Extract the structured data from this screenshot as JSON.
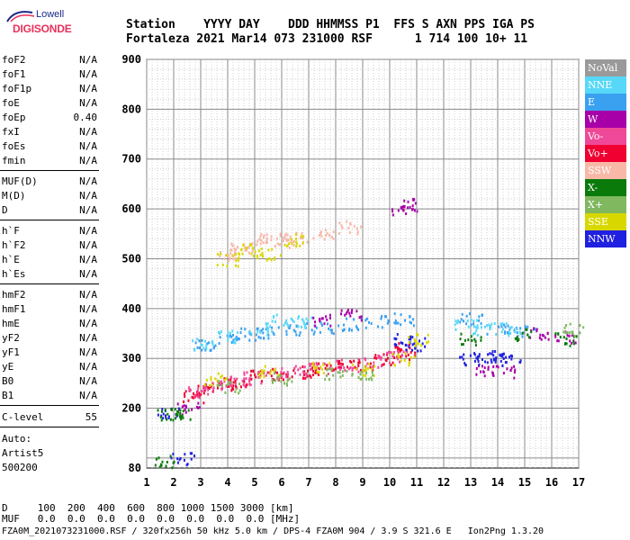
{
  "logo": {
    "top": "Lowell",
    "bottom": "DIGISONDE"
  },
  "header": {
    "line1": "Station    YYYY DAY    DDD HHMMSS P1  FFS S AXN PPS IGA PS",
    "line2": "Fortaleza 2021 Mar14 073 231000 RSF      1 714 100 10+ 11"
  },
  "params_group1": [
    {
      "k": "foF2",
      "v": "N/A"
    },
    {
      "k": "foF1",
      "v": "N/A"
    },
    {
      "k": "foF1p",
      "v": "N/A"
    },
    {
      "k": "foE",
      "v": "N/A"
    },
    {
      "k": "foEp",
      "v": "0.40"
    },
    {
      "k": "fxI",
      "v": "N/A"
    },
    {
      "k": "foEs",
      "v": "N/A"
    },
    {
      "k": "fmin",
      "v": "N/A"
    }
  ],
  "params_group2": [
    {
      "k": "MUF(D)",
      "v": "N/A"
    },
    {
      "k": "M(D)",
      "v": "N/A"
    },
    {
      "k": "D",
      "v": "N/A"
    }
  ],
  "params_group3": [
    {
      "k": "h`F",
      "v": "N/A"
    },
    {
      "k": "h`F2",
      "v": "N/A"
    },
    {
      "k": "h`E",
      "v": "N/A"
    },
    {
      "k": "h`Es",
      "v": "N/A"
    }
  ],
  "params_group4": [
    {
      "k": "hmF2",
      "v": "N/A"
    },
    {
      "k": "hmF1",
      "v": "N/A"
    },
    {
      "k": "hmE",
      "v": "N/A"
    },
    {
      "k": "yF2",
      "v": "N/A"
    },
    {
      "k": "yF1",
      "v": "N/A"
    },
    {
      "k": "yE",
      "v": "N/A"
    },
    {
      "k": "B0",
      "v": "N/A"
    },
    {
      "k": "B1",
      "v": "N/A"
    }
  ],
  "clevel": {
    "k": "C-level",
    "v": "55"
  },
  "auto": [
    "Auto:",
    "Artist5",
    "500200"
  ],
  "legend": [
    {
      "label": "NoVal",
      "color": "#9a9a9a"
    },
    {
      "label": "NNE",
      "color": "#58d8f8"
    },
    {
      "label": "E",
      "color": "#3aa0f0"
    },
    {
      "label": "W",
      "color": "#a800a8"
    },
    {
      "label": "Vo-",
      "color": "#f04898"
    },
    {
      "label": "Vo+",
      "color": "#f00030"
    },
    {
      "label": "SSW",
      "color": "#f8b8a8"
    },
    {
      "label": "X-",
      "color": "#0a7a0a"
    },
    {
      "label": "X+",
      "color": "#80b860"
    },
    {
      "label": "SSE",
      "color": "#d8d800"
    },
    {
      "label": "NNW",
      "color": "#2020e0"
    }
  ],
  "footer": {
    "line1": "D     100  200  400  600  800 1000 1500 3000 [km]",
    "line2": "MUF   0.0  0.0  0.0  0.0  0.0  0.0  0.0  0.0 [MHz]",
    "line3": "FZA0M_2021073231000.RSF / 320fx256h 50 kHz 5.0 km / DPS-4 FZA0M 904 / 3.9 S 321.6 E   Ion2Png 1.3.20"
  },
  "chart_data": {
    "type": "scatter",
    "title": "",
    "xlabel": "",
    "ylabel": "",
    "xlim": [
      1,
      17
    ],
    "ylim": [
      80,
      900
    ],
    "x_ticks": [
      "1",
      "2",
      "3",
      "4",
      "5",
      "6",
      "7",
      "8",
      "9",
      "10",
      "11",
      "12",
      "13",
      "14",
      "15",
      "16",
      "17"
    ],
    "y_ticks": [
      "80",
      "200",
      "300",
      "400",
      "500",
      "600",
      "700",
      "800",
      "900"
    ],
    "grid": true,
    "legend_position": "right",
    "series": [
      {
        "name": "Vo+",
        "color": "#f00030",
        "points": [
          [
            2.7,
            225
          ],
          [
            3.2,
            240
          ],
          [
            3.8,
            250
          ],
          [
            4.5,
            255
          ],
          [
            5.2,
            265
          ],
          [
            6.0,
            270
          ],
          [
            6.8,
            275
          ],
          [
            7.5,
            280
          ],
          [
            8.2,
            285
          ],
          [
            9.0,
            290
          ],
          [
            9.8,
            300
          ],
          [
            10.3,
            310
          ],
          [
            10.6,
            320
          ]
        ]
      },
      {
        "name": "Vo-",
        "color": "#f04898",
        "points": [
          [
            2.9,
            235
          ],
          [
            3.5,
            245
          ],
          [
            4.2,
            255
          ],
          [
            5.0,
            262
          ],
          [
            5.8,
            270
          ],
          [
            6.6,
            278
          ],
          [
            7.4,
            283
          ],
          [
            8.4,
            288
          ],
          [
            9.4,
            295
          ],
          [
            10.2,
            305
          ]
        ]
      },
      {
        "name": "E",
        "color": "#3aa0f0",
        "points": [
          [
            3.2,
            330
          ],
          [
            4.0,
            340
          ],
          [
            4.8,
            350
          ],
          [
            5.5,
            355
          ],
          [
            6.5,
            360
          ],
          [
            7.5,
            362
          ],
          [
            8.5,
            370
          ],
          [
            9.5,
            375
          ],
          [
            10.5,
            380
          ],
          [
            13.0,
            380
          ],
          [
            14.0,
            360
          ],
          [
            15.0,
            355
          ]
        ]
      },
      {
        "name": "NNE",
        "color": "#58d8f8",
        "points": [
          [
            3.0,
            330
          ],
          [
            4.0,
            345
          ],
          [
            5.2,
            360
          ],
          [
            6.0,
            380
          ],
          [
            7.0,
            375
          ],
          [
            12.8,
            370
          ],
          [
            13.5,
            360
          ],
          [
            14.5,
            360
          ]
        ]
      },
      {
        "name": "W",
        "color": "#a800a8",
        "points": [
          [
            2.5,
            200
          ],
          [
            7.5,
            380
          ],
          [
            8.5,
            390
          ],
          [
            10.4,
            600
          ],
          [
            10.8,
            610
          ],
          [
            13.5,
            275
          ],
          [
            14.2,
            275
          ],
          [
            15.5,
            350
          ],
          [
            16.5,
            345
          ]
        ]
      },
      {
        "name": "NNW",
        "color": "#2020e0",
        "points": [
          [
            1.8,
            190
          ],
          [
            2.3,
            100
          ],
          [
            10.5,
            340
          ],
          [
            10.9,
            330
          ],
          [
            13.0,
            300
          ],
          [
            13.5,
            305
          ],
          [
            14.0,
            300
          ],
          [
            14.5,
            300
          ]
        ]
      },
      {
        "name": "SSW",
        "color": "#f8b8a8",
        "points": [
          [
            4.0,
            510
          ],
          [
            4.5,
            520
          ],
          [
            5.0,
            530
          ],
          [
            5.5,
            540
          ],
          [
            6.0,
            535
          ],
          [
            6.5,
            545
          ],
          [
            7.5,
            550
          ],
          [
            8.5,
            565
          ]
        ]
      },
      {
        "name": "SSE",
        "color": "#d8d800",
        "points": [
          [
            4.0,
            500
          ],
          [
            4.8,
            520
          ],
          [
            5.5,
            510
          ],
          [
            6.5,
            540
          ],
          [
            3.5,
            260
          ],
          [
            5.5,
            275
          ],
          [
            7.5,
            285
          ],
          [
            9.0,
            280
          ],
          [
            10.5,
            300
          ],
          [
            11.0,
            340
          ]
        ]
      },
      {
        "name": "X-",
        "color": "#0a7a0a",
        "points": [
          [
            1.6,
            95
          ],
          [
            1.8,
            190
          ],
          [
            2.2,
            190
          ],
          [
            13.0,
            340
          ],
          [
            15.0,
            350
          ],
          [
            16.5,
            340
          ]
        ]
      },
      {
        "name": "X+",
        "color": "#80b860",
        "points": [
          [
            4.0,
            245
          ],
          [
            6.0,
            260
          ],
          [
            8.0,
            270
          ],
          [
            9.0,
            270
          ],
          [
            16.8,
            360
          ]
        ]
      }
    ]
  }
}
